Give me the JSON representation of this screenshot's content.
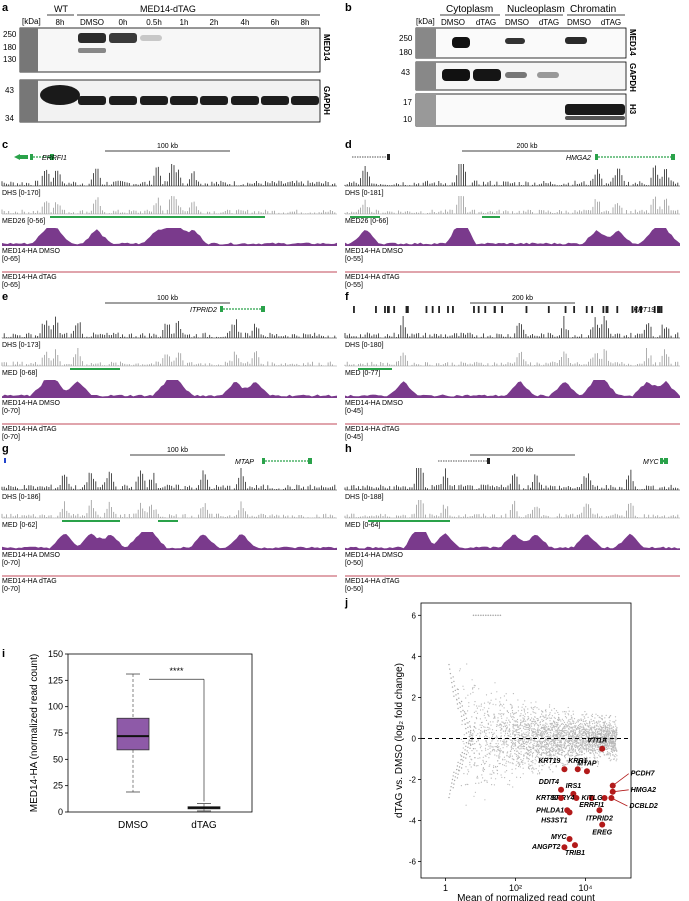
{
  "panels": {
    "a": {
      "label": "a",
      "kda": "[kDa]",
      "wt": "WT",
      "construct": "MED14-dTAG",
      "lanes": [
        "8h",
        "DMSO",
        "0h",
        "0.5h",
        "1h",
        "2h",
        "4h",
        "6h",
        "8h"
      ],
      "mw_top": [
        "250",
        "180",
        "130"
      ],
      "mw_bottom": [
        "43",
        "34"
      ],
      "blot_top": "MED14",
      "blot_bottom": "GAPDH"
    },
    "b": {
      "label": "b",
      "kda": "[kDa]",
      "fractions": [
        "Cytoplasm",
        "Nucleoplasm",
        "Chromatin"
      ],
      "lanes": [
        "DMSO",
        "dTAG",
        "DMSO",
        "dTAG",
        "DMSO",
        "dTAG"
      ],
      "mw_1": [
        "250",
        "180"
      ],
      "mw_2": [
        "43"
      ],
      "mw_3": [
        "17",
        "10"
      ],
      "blot_1": "MED14",
      "blot_2": "GAPDH",
      "blot_3": "H3"
    },
    "c": {
      "label": "c",
      "scale": "100 kb",
      "gene": "ERRFI1",
      "tracks": [
        "DHS [0-170]",
        "MED26 [0-56]",
        "MED14-HA DMSO",
        "[0-65]",
        "MED14-HA dTAG",
        "[0-65]"
      ]
    },
    "d": {
      "label": "d",
      "scale": "200 kb",
      "gene": "HMGA2",
      "tracks": [
        "DHS [0-181]",
        "MED26 [0-66]",
        "MED14-HA DMSO",
        "[0-55]",
        "MED14-HA dTAG",
        "[0-55]"
      ]
    },
    "e": {
      "label": "e",
      "scale": "100 kb",
      "gene": "ITPRID2",
      "tracks": [
        "DHS [0-173]",
        "MED [0-68]",
        "MED14-HA DMSO",
        "[0-70]",
        "MED14-HA dTAG",
        "[0-70]"
      ]
    },
    "f": {
      "label": "f",
      "scale": "200 kb",
      "gene": "KRT19",
      "tracks": [
        "DHS [0-180]",
        "MED [0-77]",
        "MED14-HA DMSO",
        "[0-45]",
        "MED14-HA dTAG",
        "[0-45]"
      ]
    },
    "g": {
      "label": "g",
      "scale": "100 kb",
      "gene": "MTAP",
      "tracks": [
        "DHS [0-186]",
        "MED [0-62]",
        "MED14-HA DMSO",
        "[0-70]",
        "MED14-HA dTAG",
        "[0-70]"
      ]
    },
    "h": {
      "label": "h",
      "scale": "200 kb",
      "gene": "MYC",
      "tracks": [
        "DHS [0-188]",
        "MED [0-64]",
        "MED14-HA DMSO",
        "[0-50]",
        "MED14-HA dTAG",
        "[0-50]"
      ]
    },
    "i": {
      "label": "i"
    },
    "j": {
      "label": "j"
    }
  },
  "colors": {
    "dhs": "#222222",
    "med": "#9a9a9a",
    "dmso": "#7a3a8c",
    "dtag": "#c24a5a",
    "green": "#2aa24a",
    "box": "#8e5aa8",
    "red": "#b21a1a"
  },
  "chart_data": [
    {
      "type": "box",
      "title": "",
      "ylabel": "MED14-HA (normalized read count)",
      "categories": [
        "DMSO",
        "dTAG"
      ],
      "ylim": [
        0,
        150
      ],
      "yticks": [
        0,
        25,
        50,
        75,
        100,
        125,
        150
      ],
      "stats": [
        {
          "name": "DMSO",
          "min": 19,
          "q1": 59,
          "median": 72,
          "q3": 89,
          "max": 131
        },
        {
          "name": "dTAG",
          "min": 1,
          "q1": 3,
          "median": 4,
          "q3": 5,
          "max": 8
        }
      ],
      "annotation": "****"
    },
    {
      "type": "scatter",
      "xlabel": "Mean of normalized read count",
      "ylabel": "dTAG vs. DMSO (log₂ fold change)",
      "xscale": "log",
      "xticks": [
        "1",
        "10²",
        "10⁴"
      ],
      "yticks": [
        6,
        4,
        2,
        0,
        -2,
        -4,
        -6
      ],
      "ylim": [
        -6.8,
        6.6
      ],
      "highlighted": [
        {
          "label": "VTI1A",
          "x": 30000,
          "y": -0.5
        },
        {
          "label": "KRT19",
          "x": 2500,
          "y": -1.5
        },
        {
          "label": "KRR1",
          "x": 6000,
          "y": -1.5
        },
        {
          "label": "MTAP",
          "x": 11000,
          "y": -1.6
        },
        {
          "label": "PCDH7",
          "x": 60000,
          "y": -2.3
        },
        {
          "label": "HMGA2",
          "x": 60000,
          "y": -2.6
        },
        {
          "label": "DCBLD2",
          "x": 55000,
          "y": -2.9
        },
        {
          "label": "DDIT4",
          "x": 2000,
          "y": -2.5
        },
        {
          "label": "IRS1",
          "x": 4500,
          "y": -2.7
        },
        {
          "label": "SPRY4",
          "x": 5500,
          "y": -2.9
        },
        {
          "label": "KRT80",
          "x": 2000,
          "y": -2.9
        },
        {
          "label": "ERRFI1",
          "x": 15000,
          "y": -2.9
        },
        {
          "label": "KITLG",
          "x": 35000,
          "y": -2.9
        },
        {
          "label": "PHLDA1",
          "x": 3000,
          "y": -3.5
        },
        {
          "label": "HS3ST1",
          "x": 3500,
          "y": -3.6
        },
        {
          "label": "ITPRID2",
          "x": 25000,
          "y": -3.5
        },
        {
          "label": "EREG",
          "x": 30000,
          "y": -4.2
        },
        {
          "label": "MYC",
          "x": 3500,
          "y": -4.9
        },
        {
          "label": "ANGPT2",
          "x": 2500,
          "y": -5.3
        },
        {
          "label": "TRIB1",
          "x": 5000,
          "y": -5.2
        }
      ]
    }
  ]
}
